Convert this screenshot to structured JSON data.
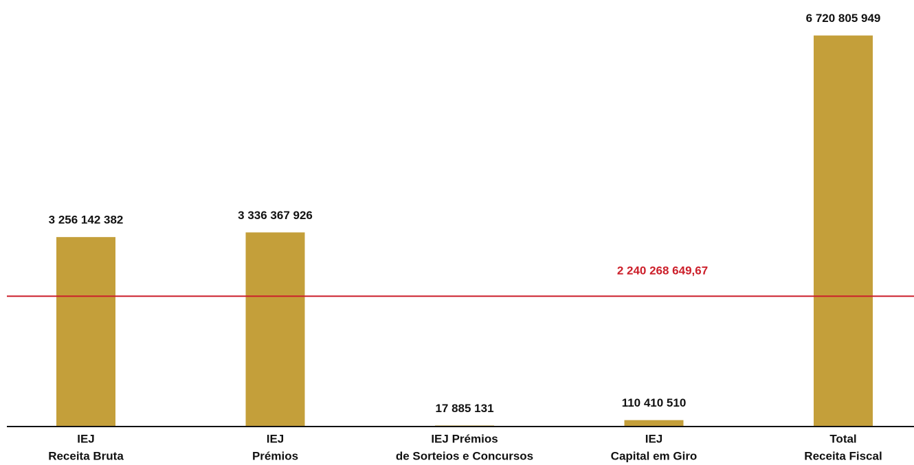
{
  "chart_data": {
    "type": "bar",
    "categories": [
      [
        "IEJ",
        "Receita Bruta"
      ],
      [
        "IEJ",
        "Prémios"
      ],
      [
        "IEJ Prémios",
        "de Sorteios e Concursos"
      ],
      [
        "IEJ",
        "Capital em Giro"
      ],
      [
        "Total",
        "Receita Fiscal"
      ]
    ],
    "values": [
      3256142382,
      3336367926,
      17885131,
      110410510,
      6720805949
    ],
    "value_labels": [
      "3 256 142 382",
      "3 336 367 926",
      "17 885 131",
      "110 410 510",
      "6 720 805 949"
    ],
    "color": "#c49f3a",
    "ylim": [
      0,
      7000000000
    ],
    "reference_line": {
      "value": 2240268649.67,
      "label": "2 240 268 649,67",
      "color": "#cc1f2a"
    }
  }
}
